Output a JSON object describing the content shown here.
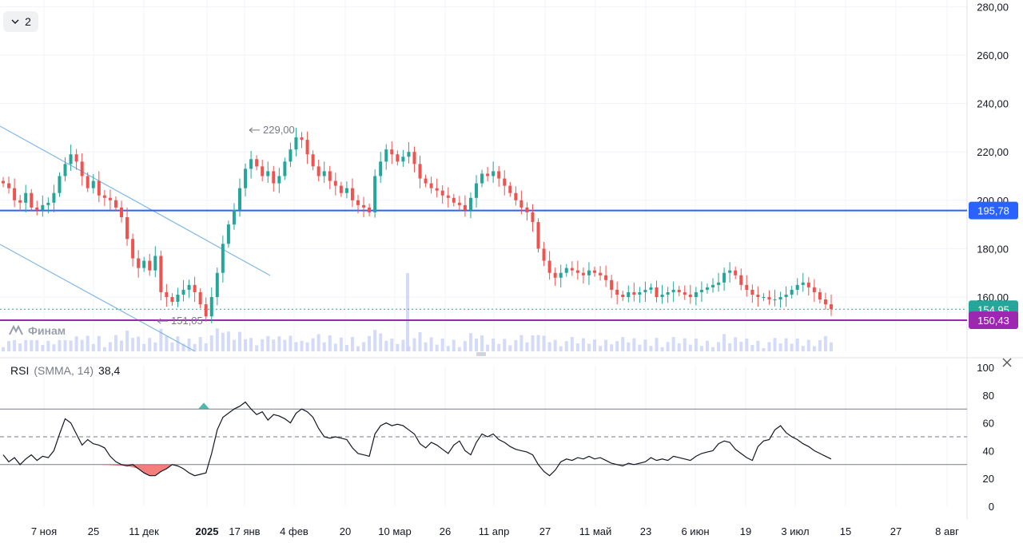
{
  "header": {
    "collapse_count": "2"
  },
  "logo": {
    "text": "Финам"
  },
  "colors": {
    "up": "#26a69a",
    "down": "#ef5350",
    "level_195": "#2962ff",
    "level_150": "#9c27b0",
    "price_line": "#26a69a",
    "trend": "#7fb7e6",
    "volume": "#c9d2f7",
    "rsi_line": "#131722",
    "rsi_fill_low": "#ef5350",
    "rsi_fill_high": "#26a69a"
  },
  "price_axis": {
    "ticks": [
      "280,00",
      "260,00",
      "240,00",
      "220,00",
      "200,00",
      "180,00",
      "160,00"
    ],
    "tick_values": [
      280,
      260,
      240,
      220,
      200,
      180,
      160
    ]
  },
  "badges": [
    {
      "label": "195,78",
      "value": 195.78,
      "color": "#2962ff"
    },
    {
      "label": "154,95",
      "value": 154.95,
      "color": "#26a69a"
    },
    {
      "label": "150,43",
      "value": 150.43,
      "color": "#9c27b0"
    }
  ],
  "annotations": {
    "high": {
      "label": "229,00",
      "value": 229.0
    },
    "low": {
      "label": "151,05",
      "value": 151.05
    }
  },
  "time_axis": {
    "labels": [
      "7 ноя",
      "25",
      "11 дек",
      "2025",
      "17 янв",
      "4 фев",
      "20",
      "10 мар",
      "26",
      "11 апр",
      "27",
      "11 май",
      "23",
      "6 июн",
      "19",
      "3 июл",
      "15",
      "27",
      "8 авг"
    ],
    "bold": [
      "2025"
    ]
  },
  "rsi": {
    "name": "RSI",
    "params": "(SMMA, 14)",
    "value": "38,4",
    "ticks": [
      "100",
      "80",
      "60",
      "40",
      "20",
      "0"
    ],
    "tick_values": [
      100,
      80,
      60,
      40,
      20,
      0
    ],
    "levels": [
      70,
      50,
      30
    ]
  },
  "chart_data": {
    "type": "candlestick",
    "timeframe": "daily",
    "ylim": [
      140,
      282
    ],
    "horizontal_levels": [
      195.78,
      150.43
    ],
    "last_price": 154.95,
    "series_close": [
      207,
      205,
      200,
      199,
      203,
      197,
      196,
      198,
      199,
      203,
      210,
      215,
      219,
      216,
      210,
      205,
      208,
      202,
      201,
      200,
      197,
      193,
      184,
      176,
      172,
      175,
      171,
      177,
      162,
      160,
      158,
      161,
      163,
      165,
      162,
      157,
      152,
      160,
      170,
      182,
      190,
      196,
      205,
      213,
      217,
      214,
      210,
      212,
      207,
      210,
      216,
      221,
      226,
      225,
      219,
      214,
      210,
      212,
      208,
      206,
      203,
      205,
      200,
      198,
      197,
      195,
      210,
      216,
      221,
      219,
      216,
      218,
      220,
      215,
      209,
      207,
      205,
      204,
      202,
      201,
      199,
      198,
      196,
      201,
      207,
      211,
      210,
      212,
      209,
      206,
      203,
      200,
      197,
      195,
      191,
      180,
      175,
      170,
      168,
      170,
      172,
      171,
      170,
      169,
      171,
      170,
      169,
      167,
      163,
      161,
      160,
      162,
      161,
      162,
      163,
      164,
      160,
      161,
      162,
      163,
      162,
      161,
      160,
      162,
      163,
      164,
      165,
      166,
      170,
      171,
      169,
      165,
      163,
      161,
      160,
      160,
      159,
      159,
      160,
      161,
      163,
      165,
      166,
      164,
      162,
      159,
      157,
      155
    ]
  }
}
